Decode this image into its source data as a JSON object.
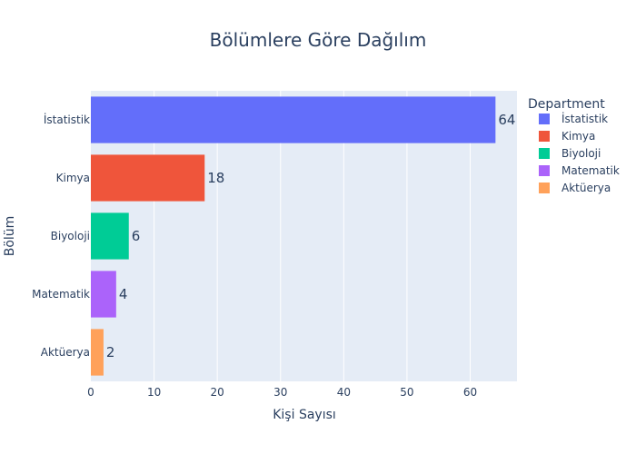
{
  "chart_data": {
    "type": "bar",
    "orientation": "horizontal",
    "title": "Bölümlere Göre Dağılım",
    "xlabel": "Kişi Sayısı",
    "ylabel": "Bölüm",
    "categories": [
      "İstatistik",
      "Kimya",
      "Biyoloji",
      "Matematik",
      "Aktüerya"
    ],
    "values": [
      64,
      18,
      6,
      4,
      2
    ],
    "data_labels": [
      "64",
      "18",
      "6",
      "4",
      "2"
    ],
    "xlim": [
      0,
      67.4
    ],
    "xticks": [
      0,
      10,
      20,
      30,
      40,
      50,
      60
    ],
    "xtick_labels": [
      "0",
      "10",
      "20",
      "30",
      "40",
      "50",
      "60"
    ],
    "grid": true,
    "plot_background": "#e5ecf6",
    "colors": [
      "#636efa",
      "#ef553b",
      "#00cc96",
      "#ab63fa",
      "#ffa15a"
    ],
    "legend": {
      "title": "Department",
      "placement": "right",
      "entries": [
        "İstatistik",
        "Kimya",
        "Biyoloji",
        "Matematik",
        "Aktüerya"
      ]
    }
  }
}
